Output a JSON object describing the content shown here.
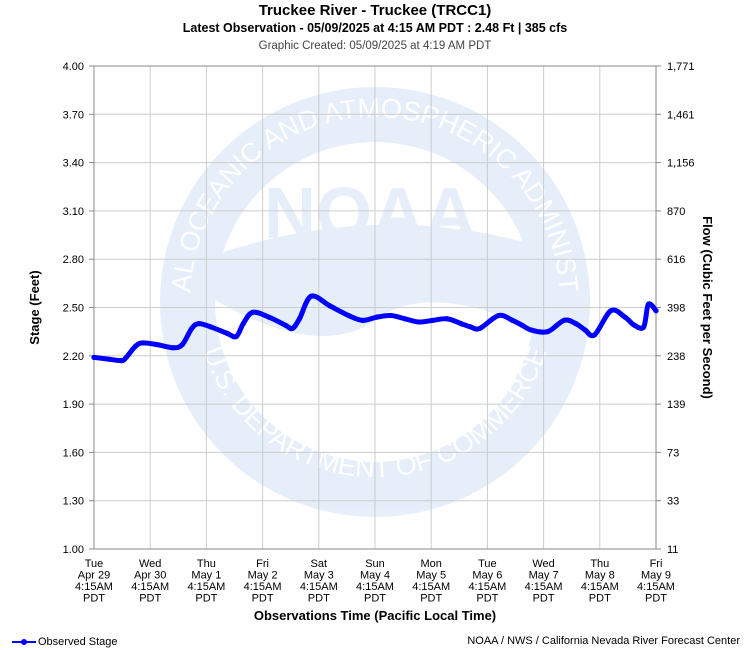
{
  "header": {
    "title": "Truckee River - Truckee (TRCC1)",
    "subtitle": "Latest Observation - 05/09/2025 at 4:15 AM PDT : 2.48 Ft | 385 cfs",
    "created": "Graphic Created: 05/09/2025 at 4:19 AM PDT"
  },
  "watermark": {
    "logo_text": "NOAA",
    "ring_top": "NATIONAL OCEANIC AND ATMOSPHERIC ADMINISTRATION",
    "ring_bottom": "U.S. DEPARTMENT OF COMMERCE"
  },
  "legend": {
    "label": "Observed Stage",
    "color": "#0000ff"
  },
  "credit": "NOAA / NWS / California Nevada River Forecast Center",
  "chart_data": {
    "type": "line",
    "xlabel": "Observations Time (Pacific Local Time)",
    "ylabel": "Stage (Feet)",
    "y2label": "Flow (Cubic Feet per Second)",
    "ylim": [
      1.0,
      4.0
    ],
    "yticks": [
      "1.00",
      "1.30",
      "1.60",
      "1.90",
      "2.20",
      "2.50",
      "2.80",
      "3.10",
      "3.40",
      "3.70",
      "4.00"
    ],
    "y2ticks": [
      "11",
      "33",
      "73",
      "139",
      "238",
      "398",
      "616",
      "870",
      "1,156",
      "1,461",
      "1,771"
    ],
    "xticks": [
      {
        "day": "Tue",
        "date": "Apr 29",
        "time": "4:15AM",
        "tz": "PDT"
      },
      {
        "day": "Wed",
        "date": "Apr 30",
        "time": "4:15AM",
        "tz": "PDT"
      },
      {
        "day": "Thu",
        "date": "May 1",
        "time": "4:15AM",
        "tz": "PDT"
      },
      {
        "day": "Fri",
        "date": "May 2",
        "time": "4:15AM",
        "tz": "PDT"
      },
      {
        "day": "Sat",
        "date": "May 3",
        "time": "4:15AM",
        "tz": "PDT"
      },
      {
        "day": "Sun",
        "date": "May 4",
        "time": "4:15AM",
        "tz": "PDT"
      },
      {
        "day": "Mon",
        "date": "May 5",
        "time": "4:15AM",
        "tz": "PDT"
      },
      {
        "day": "Tue",
        "date": "May 6",
        "time": "4:15AM",
        "tz": "PDT"
      },
      {
        "day": "Wed",
        "date": "May 7",
        "time": "4:15AM",
        "tz": "PDT"
      },
      {
        "day": "Thu",
        "date": "May 8",
        "time": "4:15AM",
        "tz": "PDT"
      },
      {
        "day": "Fri",
        "date": "May 9",
        "time": "4:15AM",
        "tz": "PDT"
      }
    ],
    "grid": true,
    "series": [
      {
        "name": "Observed Stage",
        "color": "#0000ff",
        "x": [
          "Apr 29 4:15AM",
          "Apr 29 10:00AM",
          "Apr 29 4:00PM",
          "Apr 29 6:00PM",
          "Apr 29 10:00PM",
          "Apr 30 1:00AM",
          "Apr 30 7:00AM",
          "Apr 30 2:00PM",
          "Apr 30 6:00PM",
          "Apr 30 10:00PM",
          "May 1 1:00AM",
          "May 1 6:00AM",
          "May 1 1:00PM",
          "May 1 5:00PM",
          "May 1 8:00PM",
          "May 2 12:00AM",
          "May 2 7:00AM",
          "May 2 2:00PM",
          "May 2 5:00PM",
          "May 2 8:00PM",
          "May 3 1:00AM",
          "May 3 9:00AM",
          "May 3 5:00PM",
          "May 3 11:00PM",
          "May 4 5:00AM",
          "May 4 11:00AM",
          "May 4 5:00PM",
          "May 4 11:00PM",
          "May 5 5:00AM",
          "May 5 11:00AM",
          "May 5 5:00PM",
          "May 5 9:00PM",
          "May 6 1:00AM",
          "May 6 9:00AM",
          "May 6 3:00PM",
          "May 6 7:00PM",
          "May 6 11:00PM",
          "May 7 6:00AM",
          "May 7 1:00PM",
          "May 7 6:00PM",
          "May 7 10:00PM",
          "May 8 2:00AM",
          "May 8 9:00AM",
          "May 8 3:00PM",
          "May 8 7:00PM",
          "May 8 11:00PM",
          "May 9 1:00AM",
          "May 9 4:15AM"
        ],
        "values": [
          2.19,
          2.18,
          2.17,
          2.19,
          2.26,
          2.28,
          2.27,
          2.25,
          2.27,
          2.37,
          2.4,
          2.38,
          2.34,
          2.32,
          2.4,
          2.47,
          2.44,
          2.39,
          2.37,
          2.43,
          2.57,
          2.51,
          2.45,
          2.42,
          2.44,
          2.45,
          2.43,
          2.41,
          2.42,
          2.43,
          2.4,
          2.38,
          2.37,
          2.45,
          2.42,
          2.39,
          2.36,
          2.35,
          2.42,
          2.4,
          2.36,
          2.33,
          2.48,
          2.44,
          2.39,
          2.38,
          2.52,
          2.48
        ]
      }
    ]
  }
}
